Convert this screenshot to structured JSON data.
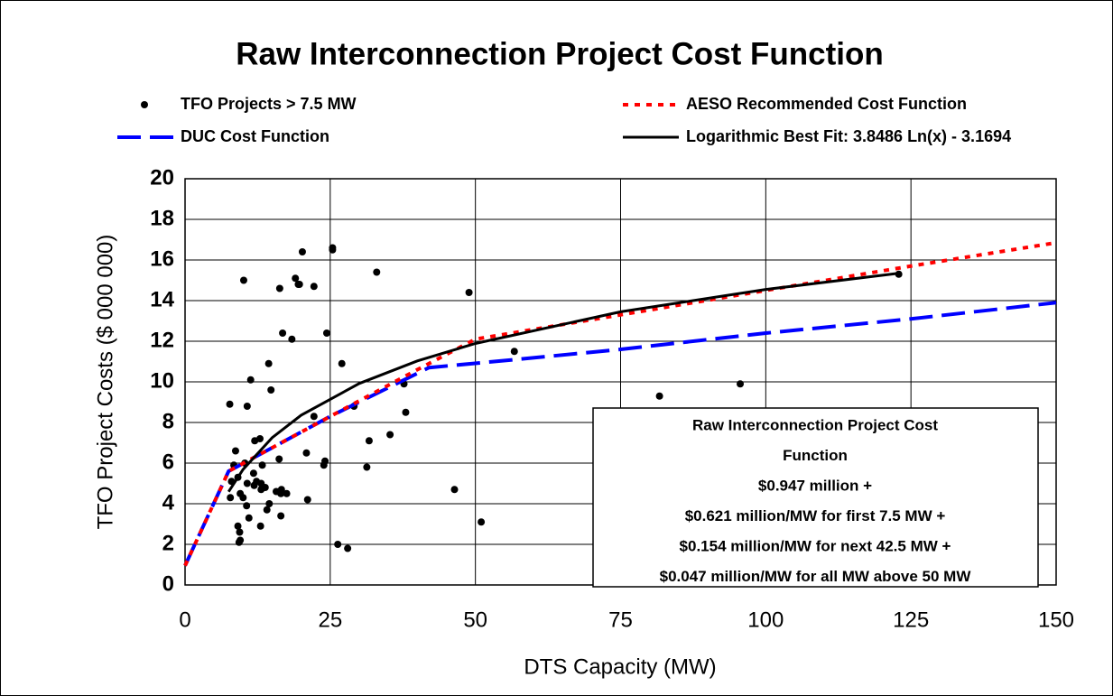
{
  "chart_data": {
    "type": "scatter",
    "title": "Raw Interconnection Project Cost Function",
    "xlabel": "DTS Capacity (MW)",
    "ylabel": "TFO Project Costs ($ 000 000)",
    "xlim": [
      0,
      150
    ],
    "xticks": [
      0,
      25,
      50,
      75,
      100,
      125,
      150
    ],
    "ylim": [
      0,
      20
    ],
    "yticks": [
      0,
      2,
      4,
      6,
      8,
      10,
      12,
      14,
      16,
      18,
      20
    ],
    "grid": true,
    "legend": "top",
    "series": [
      {
        "name": "TFO Projects > 7.5 MW",
        "color": "#000000",
        "style": "markers",
        "x": [
          10.1,
          20.2,
          25.4,
          25.4,
          33,
          19.7,
          19,
          19.5,
          16.3,
          22.2,
          48.9,
          16.8,
          18.4,
          24.4,
          56.7,
          14.4,
          27,
          11.3,
          14.8,
          37.7,
          95.6,
          81.7,
          7.7,
          10.7,
          29.1,
          38,
          22.2,
          31.7,
          35.3,
          12,
          12.9,
          16.2,
          20.9,
          24.1,
          8.7,
          8.4,
          10.3,
          13.3,
          23.9,
          31.3,
          11.8,
          12.3,
          9.1,
          13.1,
          13.8,
          11.9,
          15.7,
          16.5,
          13.1,
          9.5,
          10,
          7.8,
          17.5,
          16.6,
          14.5,
          14.1,
          10.6,
          11,
          16.5,
          21.1,
          46.4,
          51,
          9.1,
          9.4,
          13,
          9.5,
          9.3,
          26.3,
          28,
          122.9,
          8,
          10.7
        ],
        "values": [
          15,
          16.4,
          16.6,
          16.5,
          15.4,
          14.8,
          15.1,
          14.8,
          14.6,
          14.7,
          14.4,
          12.4,
          12.1,
          12.4,
          11.5,
          10.9,
          10.9,
          10.1,
          9.6,
          9.9,
          9.9,
          9.3,
          8.9,
          8.8,
          8.8,
          8.5,
          8.3,
          7.1,
          7.4,
          7.1,
          7.2,
          6.2,
          6.5,
          6.1,
          6.6,
          5.9,
          6,
          5.9,
          5.9,
          5.8,
          5.5,
          5.1,
          5.3,
          5,
          4.8,
          4.9,
          4.6,
          4.5,
          4.7,
          4.5,
          4.3,
          4.3,
          4.5,
          4.7,
          4,
          3.7,
          3.9,
          3.3,
          3.4,
          4.2,
          4.7,
          3.1,
          2.9,
          2.6,
          2.9,
          2.2,
          2.1,
          2,
          1.8,
          15.3,
          5.1,
          5
        ]
      },
      {
        "name": "AESO Recommended Cost Function",
        "color": "#ff0000",
        "style": "dotted",
        "x": [
          0,
          7.5,
          25,
          40,
          50,
          75,
          100,
          125,
          150
        ],
        "values": [
          0.95,
          5.6,
          8.3,
          10.6,
          12.1,
          13.3,
          14.5,
          15.7,
          16.85
        ]
      },
      {
        "name": "DUC Cost Function",
        "color": "#0000ff",
        "style": "dashed",
        "x": [
          0,
          7.5,
          25,
          42,
          57,
          75,
          100,
          125,
          150
        ],
        "values": [
          0.95,
          5.6,
          8.3,
          10.7,
          11.1,
          11.6,
          12.4,
          13.1,
          13.9
        ]
      },
      {
        "name": "Logarithmic Best Fit: 3.8486 Ln(x) - 3.1694",
        "color": "#000000",
        "style": "solid",
        "x": [
          7.5,
          10,
          15,
          20,
          30,
          40,
          50,
          75,
          100,
          123
        ],
        "values": [
          4.59,
          5.69,
          7.25,
          8.36,
          9.92,
          11.03,
          11.89,
          13.45,
          14.55,
          15.35
        ]
      }
    ],
    "annotation": [
      "Raw Interconnection Project Cost",
      "Function",
      "$0.947 million +",
      "$0.621 million/MW for first 7.5 MW +",
      "$0.154 million/MW for next 42.5 MW +",
      "$0.047 million/MW for all MW above 50 MW"
    ]
  }
}
